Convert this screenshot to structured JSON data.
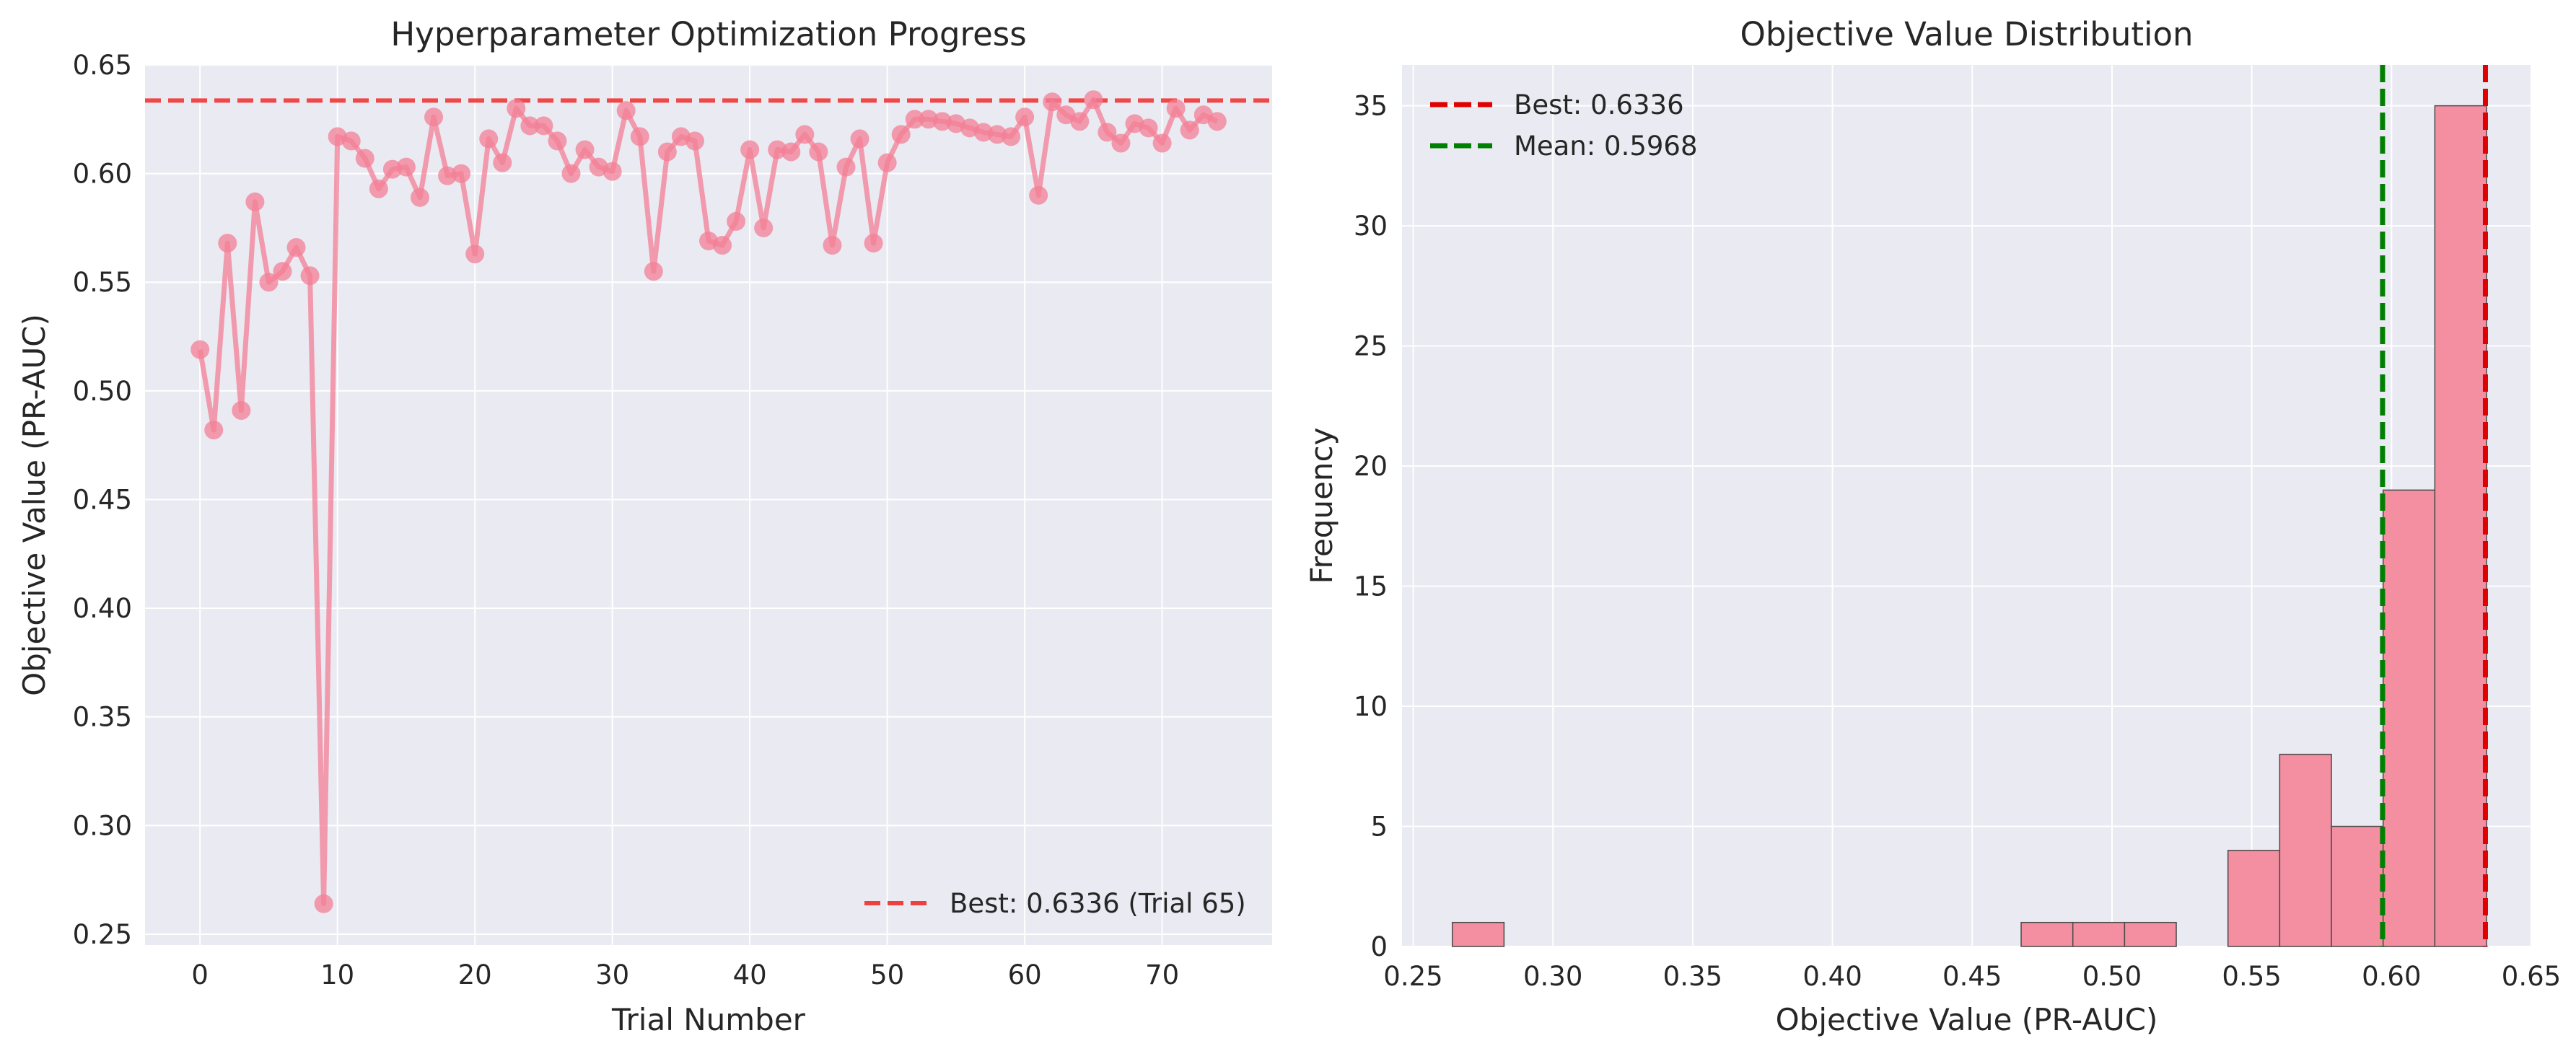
{
  "chart_data": [
    {
      "type": "line",
      "title": "Hyperparameter Optimization Progress",
      "xlabel": "Trial Number",
      "ylabel": "Objective Value (PR-AUC)",
      "xlim": [
        -4,
        78
      ],
      "ylim": [
        0.245,
        0.65
      ],
      "xticks": [
        0,
        10,
        20,
        30,
        40,
        50,
        60,
        70
      ],
      "yticks": [
        0.25,
        0.3,
        0.35,
        0.4,
        0.45,
        0.5,
        0.55,
        0.6,
        0.65
      ],
      "ytick_labels": [
        "0.25",
        "0.30",
        "0.35",
        "0.40",
        "0.45",
        "0.50",
        "0.55",
        "0.60",
        "0.65"
      ],
      "grid": true,
      "legend_position": "lower-right",
      "series": [
        {
          "color": "#f37f95",
          "x": [
            0,
            1,
            2,
            3,
            4,
            5,
            6,
            7,
            8,
            9,
            10,
            11,
            12,
            13,
            14,
            15,
            16,
            17,
            18,
            19,
            20,
            21,
            22,
            23,
            24,
            25,
            26,
            27,
            28,
            29,
            30,
            31,
            32,
            33,
            34,
            35,
            36,
            37,
            38,
            39,
            40,
            41,
            42,
            43,
            44,
            45,
            46,
            47,
            48,
            49,
            50,
            51,
            52,
            53,
            54,
            55,
            56,
            57,
            58,
            59,
            60,
            61,
            62,
            63,
            64,
            65,
            66,
            67,
            68,
            69,
            70,
            71,
            72,
            73,
            74
          ],
          "values": [
            0.519,
            0.482,
            0.568,
            0.491,
            0.587,
            0.55,
            0.555,
            0.566,
            0.553,
            0.264,
            0.617,
            0.615,
            0.607,
            0.593,
            0.602,
            0.603,
            0.589,
            0.626,
            0.599,
            0.6,
            0.563,
            0.616,
            0.605,
            0.63,
            0.622,
            0.622,
            0.615,
            0.6,
            0.611,
            0.603,
            0.601,
            0.629,
            0.617,
            0.555,
            0.61,
            0.617,
            0.615,
            0.569,
            0.567,
            0.578,
            0.611,
            0.575,
            0.611,
            0.61,
            0.618,
            0.61,
            0.567,
            0.603,
            0.616,
            0.568,
            0.605,
            0.618,
            0.625,
            0.625,
            0.624,
            0.623,
            0.621,
            0.619,
            0.618,
            0.617,
            0.626,
            0.59,
            0.633,
            0.627,
            0.624,
            0.634,
            0.619,
            0.614,
            0.623,
            0.621,
            0.614,
            0.63,
            0.62,
            0.627,
            0.624
          ]
        }
      ],
      "reference_line": {
        "orientation": "horizontal",
        "value": 0.6336,
        "color": "#ef4040",
        "label": "Best: 0.6336 (Trial 65)"
      }
    },
    {
      "type": "bar",
      "title": "Objective Value Distribution",
      "xlabel": "Objective Value (PR-AUC)",
      "ylabel": "Frequency",
      "xlim": [
        0.246,
        0.65
      ],
      "ylim": [
        0,
        36.7
      ],
      "xticks": [
        0.25,
        0.3,
        0.35,
        0.4,
        0.45,
        0.5,
        0.55,
        0.6,
        0.65
      ],
      "xtick_labels": [
        "0.25",
        "0.30",
        "0.35",
        "0.40",
        "0.45",
        "0.50",
        "0.55",
        "0.60",
        "0.65"
      ],
      "yticks": [
        0,
        5,
        10,
        15,
        20,
        25,
        30,
        35
      ],
      "grid": true,
      "legend_position": "upper-left",
      "bar_color": "#f38fa1",
      "bins": [
        {
          "start": 0.264,
          "end": 0.2825,
          "count": 1
        },
        {
          "start": 0.2825,
          "end": 0.301,
          "count": 0
        },
        {
          "start": 0.301,
          "end": 0.3195,
          "count": 0
        },
        {
          "start": 0.3195,
          "end": 0.338,
          "count": 0
        },
        {
          "start": 0.338,
          "end": 0.3565,
          "count": 0
        },
        {
          "start": 0.3565,
          "end": 0.375,
          "count": 0
        },
        {
          "start": 0.375,
          "end": 0.3935,
          "count": 0
        },
        {
          "start": 0.3935,
          "end": 0.412,
          "count": 0
        },
        {
          "start": 0.412,
          "end": 0.4305,
          "count": 0
        },
        {
          "start": 0.4305,
          "end": 0.449,
          "count": 0
        },
        {
          "start": 0.449,
          "end": 0.4675,
          "count": 0
        },
        {
          "start": 0.4675,
          "end": 0.486,
          "count": 1
        },
        {
          "start": 0.486,
          "end": 0.5045,
          "count": 1
        },
        {
          "start": 0.5045,
          "end": 0.523,
          "count": 1
        },
        {
          "start": 0.523,
          "end": 0.5415,
          "count": 0
        },
        {
          "start": 0.5415,
          "end": 0.56,
          "count": 4
        },
        {
          "start": 0.56,
          "end": 0.5785,
          "count": 8
        },
        {
          "start": 0.5785,
          "end": 0.597,
          "count": 5
        },
        {
          "start": 0.597,
          "end": 0.6155,
          "count": 19
        },
        {
          "start": 0.6155,
          "end": 0.634,
          "count": 35
        }
      ],
      "reference_lines": [
        {
          "orientation": "vertical",
          "value": 0.6336,
          "color": "#e00000",
          "label": "Best: 0.6336"
        },
        {
          "orientation": "vertical",
          "value": 0.5968,
          "color": "#008000",
          "label": "Mean: 0.5968"
        }
      ]
    }
  ]
}
